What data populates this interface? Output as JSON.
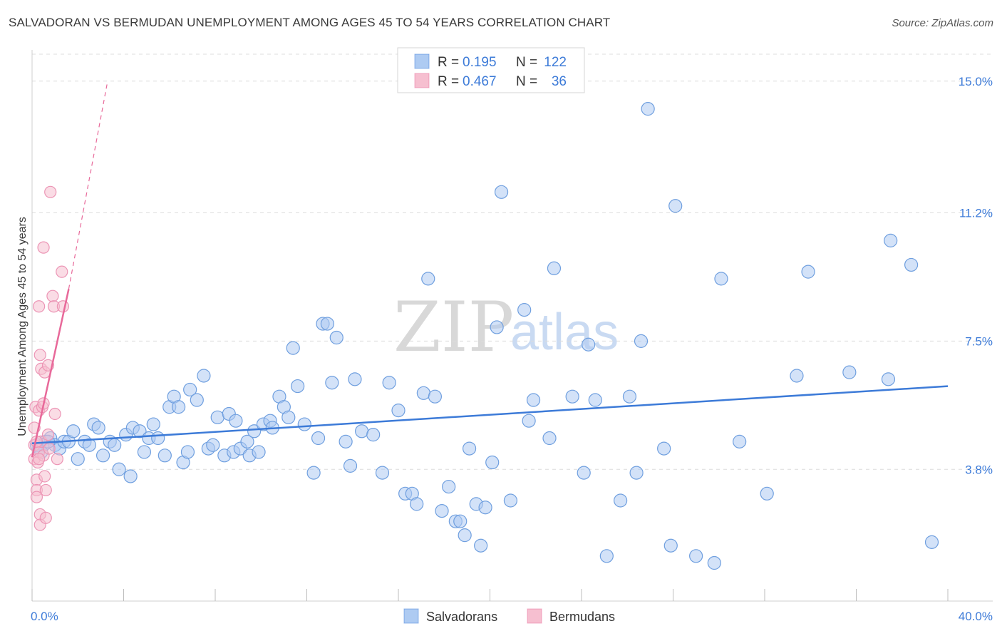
{
  "header": {
    "title": "SALVADORAN VS BERMUDAN UNEMPLOYMENT AMONG AGES 45 TO 54 YEARS CORRELATION CHART",
    "source": "Source: ZipAtlas.com"
  },
  "watermark": {
    "zip": "ZIP",
    "atlas": "atlas"
  },
  "legend": {
    "r_label": "R =",
    "n_label": "N =",
    "rows": [
      {
        "r": "0.195",
        "n": "122",
        "color": "#aecbf2"
      },
      {
        "r": "0.467",
        "n": "36",
        "color": "#f6bfd0"
      }
    ]
  },
  "chart_data": {
    "type": "scatter",
    "ylabel": "Unemployment Among Ages 45 to 54 years",
    "xlim": [
      0,
      40
    ],
    "ylim": [
      0,
      15.9
    ],
    "x_ticks": [
      "0.0%",
      "40.0%"
    ],
    "y_ticks": [
      {
        "value": 3.8,
        "label": "3.8%"
      },
      {
        "value": 7.5,
        "label": "7.5%"
      },
      {
        "value": 11.2,
        "label": "11.2%"
      },
      {
        "value": 15.0,
        "label": "15.0%"
      }
    ],
    "grid": "horizontal dashed",
    "colors": {
      "salvadorans": "#3d7bd8",
      "bermudans": "#e8699a"
    },
    "series": [
      {
        "name": "Salvadorans",
        "trend": {
          "x0": 0.0,
          "y0": 4.55,
          "x1": 40.0,
          "y1": 6.2
        },
        "points": [
          [
            0.3,
            4.4
          ],
          [
            0.5,
            4.5
          ],
          [
            0.6,
            4.6
          ],
          [
            0.8,
            4.7
          ],
          [
            1.0,
            4.5
          ],
          [
            1.2,
            4.4
          ],
          [
            1.4,
            4.6
          ],
          [
            1.6,
            4.6
          ],
          [
            1.8,
            4.9
          ],
          [
            2.0,
            4.1
          ],
          [
            2.3,
            4.6
          ],
          [
            2.5,
            4.5
          ],
          [
            2.7,
            5.1
          ],
          [
            2.9,
            5.0
          ],
          [
            3.1,
            4.2
          ],
          [
            3.4,
            4.6
          ],
          [
            3.6,
            4.5
          ],
          [
            3.8,
            3.8
          ],
          [
            4.1,
            4.8
          ],
          [
            4.3,
            3.6
          ],
          [
            4.4,
            5.0
          ],
          [
            4.7,
            4.9
          ],
          [
            4.9,
            4.3
          ],
          [
            5.1,
            4.7
          ],
          [
            5.3,
            5.1
          ],
          [
            5.5,
            4.7
          ],
          [
            5.8,
            4.2
          ],
          [
            6.0,
            5.6
          ],
          [
            6.2,
            5.9
          ],
          [
            6.4,
            5.6
          ],
          [
            6.6,
            4.0
          ],
          [
            6.8,
            4.3
          ],
          [
            6.9,
            6.1
          ],
          [
            7.2,
            5.8
          ],
          [
            7.5,
            6.5
          ],
          [
            7.7,
            4.4
          ],
          [
            7.9,
            4.5
          ],
          [
            8.1,
            5.3
          ],
          [
            8.4,
            4.2
          ],
          [
            8.6,
            5.4
          ],
          [
            8.8,
            4.3
          ],
          [
            8.9,
            5.2
          ],
          [
            9.1,
            4.4
          ],
          [
            9.4,
            4.6
          ],
          [
            9.5,
            4.2
          ],
          [
            9.7,
            4.9
          ],
          [
            9.9,
            4.3
          ],
          [
            10.1,
            5.1
          ],
          [
            10.4,
            5.2
          ],
          [
            10.5,
            5.0
          ],
          [
            10.8,
            5.9
          ],
          [
            11.0,
            5.6
          ],
          [
            11.2,
            5.3
          ],
          [
            11.4,
            7.3
          ],
          [
            11.6,
            6.2
          ],
          [
            11.9,
            5.1
          ],
          [
            12.3,
            3.7
          ],
          [
            12.5,
            4.7
          ],
          [
            12.7,
            8.0
          ],
          [
            12.9,
            8.0
          ],
          [
            13.1,
            6.3
          ],
          [
            13.3,
            7.6
          ],
          [
            13.7,
            4.6
          ],
          [
            13.9,
            3.9
          ],
          [
            14.1,
            6.4
          ],
          [
            14.4,
            4.9
          ],
          [
            14.9,
            4.8
          ],
          [
            15.3,
            3.7
          ],
          [
            15.6,
            6.3
          ],
          [
            16.0,
            5.5
          ],
          [
            16.3,
            3.1
          ],
          [
            16.6,
            3.1
          ],
          [
            16.8,
            2.8
          ],
          [
            17.1,
            6.0
          ],
          [
            17.3,
            9.3
          ],
          [
            17.6,
            5.9
          ],
          [
            17.9,
            2.6
          ],
          [
            18.2,
            3.3
          ],
          [
            18.5,
            2.3
          ],
          [
            18.7,
            2.3
          ],
          [
            18.9,
            1.9
          ],
          [
            19.1,
            4.4
          ],
          [
            19.4,
            2.8
          ],
          [
            19.6,
            1.6
          ],
          [
            19.8,
            2.7
          ],
          [
            20.1,
            4.0
          ],
          [
            20.3,
            7.9
          ],
          [
            20.5,
            11.8
          ],
          [
            20.9,
            2.9
          ],
          [
            21.5,
            8.4
          ],
          [
            21.7,
            5.2
          ],
          [
            21.9,
            5.8
          ],
          [
            22.6,
            4.7
          ],
          [
            22.8,
            9.6
          ],
          [
            23.6,
            5.9
          ],
          [
            24.1,
            3.7
          ],
          [
            24.3,
            7.4
          ],
          [
            24.6,
            5.8
          ],
          [
            25.1,
            1.3
          ],
          [
            25.7,
            2.9
          ],
          [
            26.1,
            5.9
          ],
          [
            26.4,
            3.7
          ],
          [
            26.6,
            7.5
          ],
          [
            26.9,
            14.2
          ],
          [
            27.6,
            4.4
          ],
          [
            27.9,
            1.6
          ],
          [
            28.1,
            11.4
          ],
          [
            29.0,
            1.3
          ],
          [
            29.8,
            1.1
          ],
          [
            30.1,
            9.3
          ],
          [
            30.9,
            4.6
          ],
          [
            32.1,
            3.1
          ],
          [
            33.4,
            6.5
          ],
          [
            33.9,
            9.5
          ],
          [
            35.7,
            6.6
          ],
          [
            37.4,
            6.4
          ],
          [
            37.5,
            10.4
          ],
          [
            38.4,
            9.7
          ],
          [
            39.3,
            1.7
          ],
          [
            0.2,
            4.5
          ],
          [
            0.4,
            4.3
          ],
          [
            0.7,
            4.6
          ]
        ]
      },
      {
        "name": "Bermudans",
        "trend": {
          "x0": 0.0,
          "y0": 4.15,
          "x1": 1.6,
          "y1": 9.0,
          "dash_x1": 3.3,
          "dash_y1": 15.0
        },
        "points": [
          [
            0.1,
            4.1
          ],
          [
            0.1,
            5.0
          ],
          [
            0.1,
            4.5
          ],
          [
            0.15,
            5.6
          ],
          [
            0.2,
            3.5
          ],
          [
            0.2,
            3.2
          ],
          [
            0.2,
            3.0
          ],
          [
            0.25,
            4.0
          ],
          [
            0.3,
            8.5
          ],
          [
            0.3,
            4.3
          ],
          [
            0.3,
            5.5
          ],
          [
            0.35,
            7.1
          ],
          [
            0.35,
            2.5
          ],
          [
            0.35,
            2.2
          ],
          [
            0.4,
            6.7
          ],
          [
            0.4,
            4.6
          ],
          [
            0.45,
            5.6
          ],
          [
            0.5,
            10.2
          ],
          [
            0.5,
            4.2
          ],
          [
            0.55,
            6.6
          ],
          [
            0.55,
            3.6
          ],
          [
            0.6,
            3.2
          ],
          [
            0.6,
            2.4
          ],
          [
            0.7,
            6.8
          ],
          [
            0.7,
            4.8
          ],
          [
            0.75,
            4.4
          ],
          [
            0.8,
            11.8
          ],
          [
            0.9,
            8.8
          ],
          [
            0.95,
            8.5
          ],
          [
            1.0,
            5.4
          ],
          [
            1.1,
            4.1
          ],
          [
            1.3,
            9.5
          ],
          [
            1.35,
            8.5
          ],
          [
            0.2,
            4.6
          ],
          [
            0.5,
            5.7
          ],
          [
            0.3,
            4.1
          ]
        ]
      }
    ]
  }
}
